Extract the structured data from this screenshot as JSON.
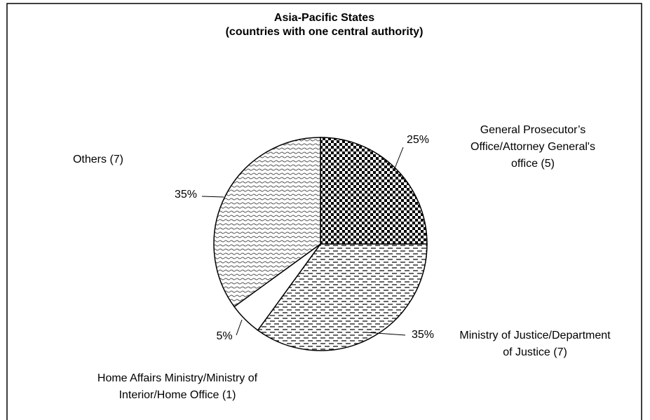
{
  "chart_data": {
    "type": "pie",
    "title": "Asia-Pacific States",
    "subtitle": "(countries with one central authority)",
    "categories": [
      "General Prosecutor’s Office/Attorney General's office (5)",
      "Ministry of Justice/Department of Justice (7)",
      "Home Affairs Ministry/Ministry of Interior/Home Office (1)",
      "Others (7)"
    ],
    "values": [
      25,
      35,
      5,
      35
    ],
    "value_labels": [
      "25%",
      "35%",
      "5%",
      "35%"
    ]
  }
}
